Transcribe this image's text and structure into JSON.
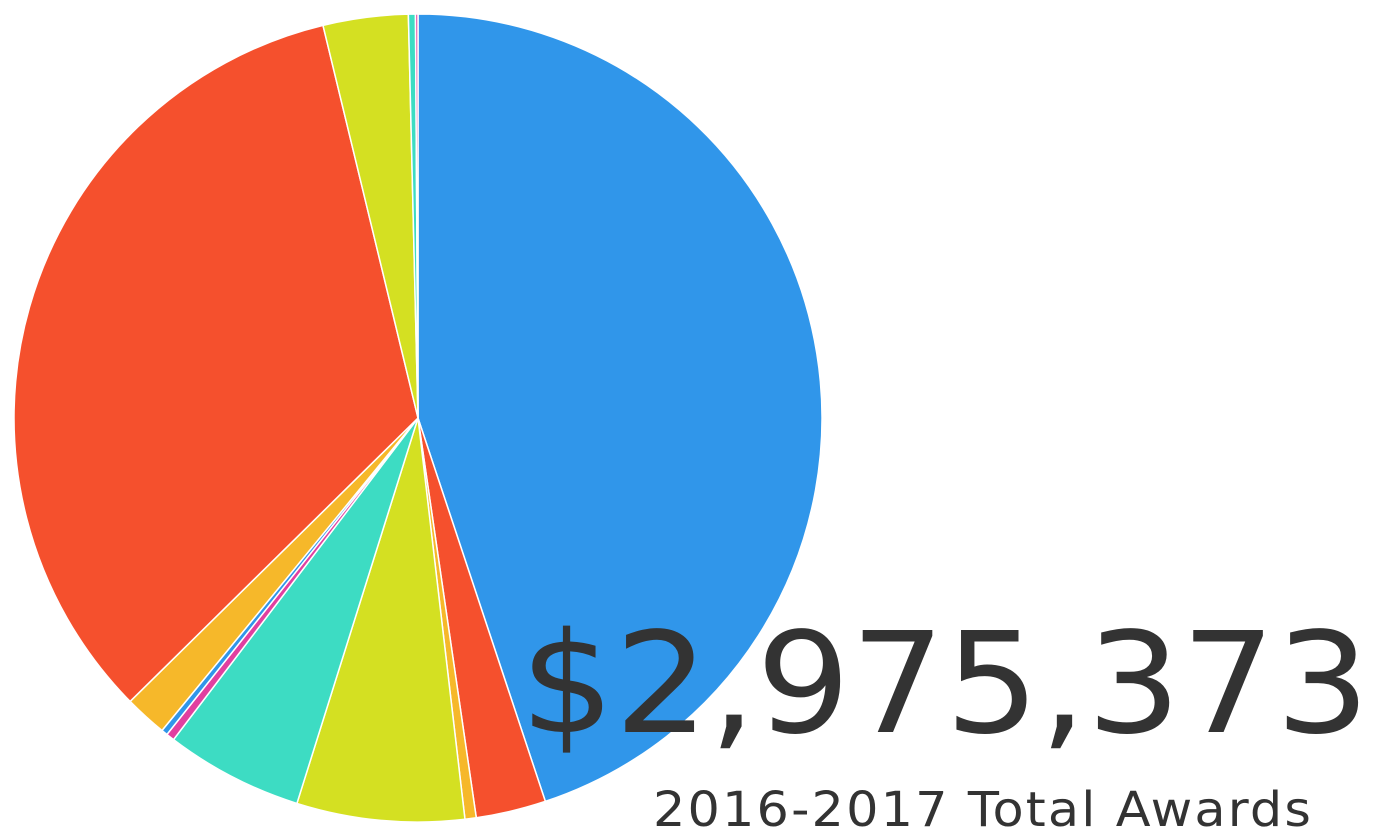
{
  "chart_data": {
    "type": "pie",
    "values": [
      44.9,
      2.8,
      0.45,
      6.7,
      5.5,
      0.33,
      0.25,
      1.7,
      33.6,
      3.4,
      0.28,
      0.1
    ],
    "colors": [
      "#3096ea",
      "#f5502d",
      "#f6b82a",
      "#d4e022",
      "#3ddcc3",
      "#e13fa0",
      "#3096ea",
      "#f6b82a",
      "#f5502d",
      "#d4e022",
      "#3ddcc3",
      "#e13fa0"
    ],
    "total": "$2,975,373",
    "subtitle": "2016-2017 Total Awards"
  }
}
